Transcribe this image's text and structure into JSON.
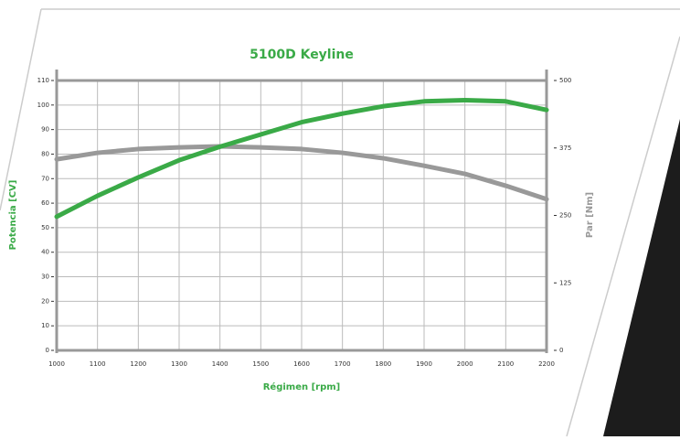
{
  "chart_data": {
    "type": "line",
    "title": "5100D Keyline",
    "x": [
      1000,
      1100,
      1200,
      1300,
      1400,
      1500,
      1600,
      1700,
      1800,
      1900,
      2000,
      2100,
      2200
    ],
    "series": [
      {
        "name": "Potencia [CV]",
        "color": "#3aaa47",
        "values": [
          54.5,
          63,
          70.5,
          77.5,
          83,
          88,
          93,
          96.5,
          99.5,
          101.5,
          102,
          101.5,
          98
        ]
      },
      {
        "name": "Par [Nm]",
        "color": "#999999",
        "axis": "y2",
        "values": [
          354,
          366,
          373,
          376,
          378,
          376,
          373,
          366,
          356,
          342,
          327,
          305,
          280
        ]
      }
    ],
    "xlabel": "Régimen [rpm]",
    "ylabel": "Potencia [CV]",
    "y2label": "Par [Nm]",
    "xlim": [
      1000,
      2200
    ],
    "xticks": [
      1000,
      1100,
      1200,
      1300,
      1400,
      1500,
      1600,
      1700,
      1800,
      1900,
      2000,
      2100,
      2200
    ],
    "ylim": [
      0,
      110
    ],
    "yticks": [
      0,
      10,
      20,
      30,
      40,
      50,
      60,
      70,
      80,
      90,
      100,
      110
    ],
    "y2lim": [
      0,
      500
    ],
    "y2ticks": [
      0,
      125,
      250,
      375,
      500
    ],
    "grid": true
  }
}
